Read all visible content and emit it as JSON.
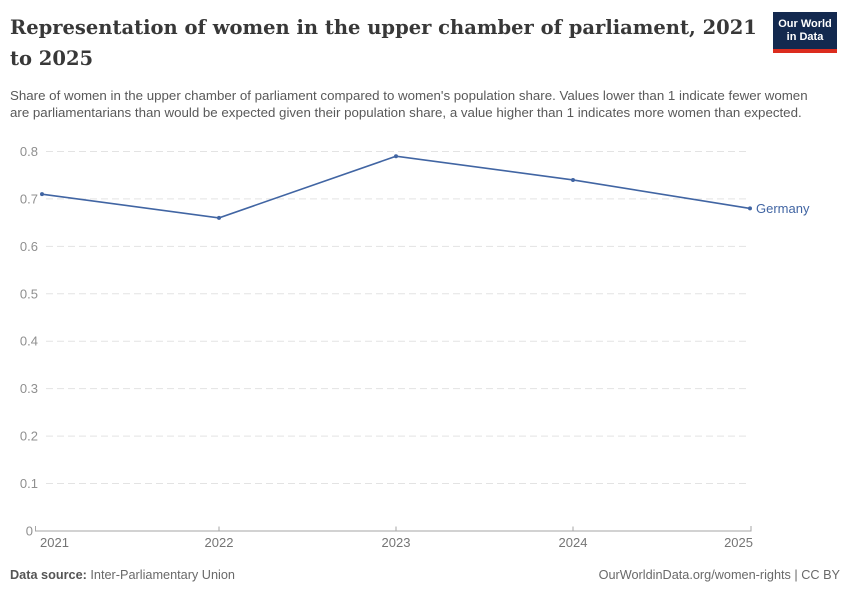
{
  "header": {
    "logo": {
      "line1": "Our World",
      "line2": "in Data"
    },
    "title": "Representation of women in the upper chamber of parliament, 2021 to 2025",
    "subtitle": "Share of women in the upper chamber of parliament compared to women's population share. Values lower than 1 indicate fewer women are parliamentarians than would be expected given their population share, a value higher than 1 indicates more women than expected."
  },
  "chart_data": {
    "type": "line",
    "title": "Representation of women in the upper chamber of parliament, 2021 to 2025",
    "x": [
      2021,
      2022,
      2023,
      2024,
      2025
    ],
    "series": [
      {
        "name": "Germany",
        "color": "#4165a3",
        "values": [
          0.71,
          0.66,
          0.79,
          0.74,
          0.68
        ]
      }
    ],
    "xlabel": "",
    "ylabel": "",
    "ylim": [
      0,
      0.8
    ],
    "yticks": [
      0,
      0.1,
      0.2,
      0.3,
      0.4,
      0.5,
      0.6,
      0.7,
      0.8
    ],
    "xticks": [
      2021,
      2022,
      2023,
      2024,
      2025
    ],
    "grid": "dashed-horizontal",
    "legend": "end-of-line-label"
  },
  "footer": {
    "datasource_label": "Data source:",
    "datasource_value": "Inter-Parliamentary Union",
    "rights": "OurWorldinData.org/women-rights | CC BY"
  },
  "colors": {
    "line": "#4165a3",
    "grid": "#e3e3e3",
    "axis": "#a6a6a6",
    "tick_label_y": "#8f8f8f",
    "tick_label_x": "#757575",
    "logo_bg": "#13294f",
    "logo_accent": "#dc2c1e"
  }
}
